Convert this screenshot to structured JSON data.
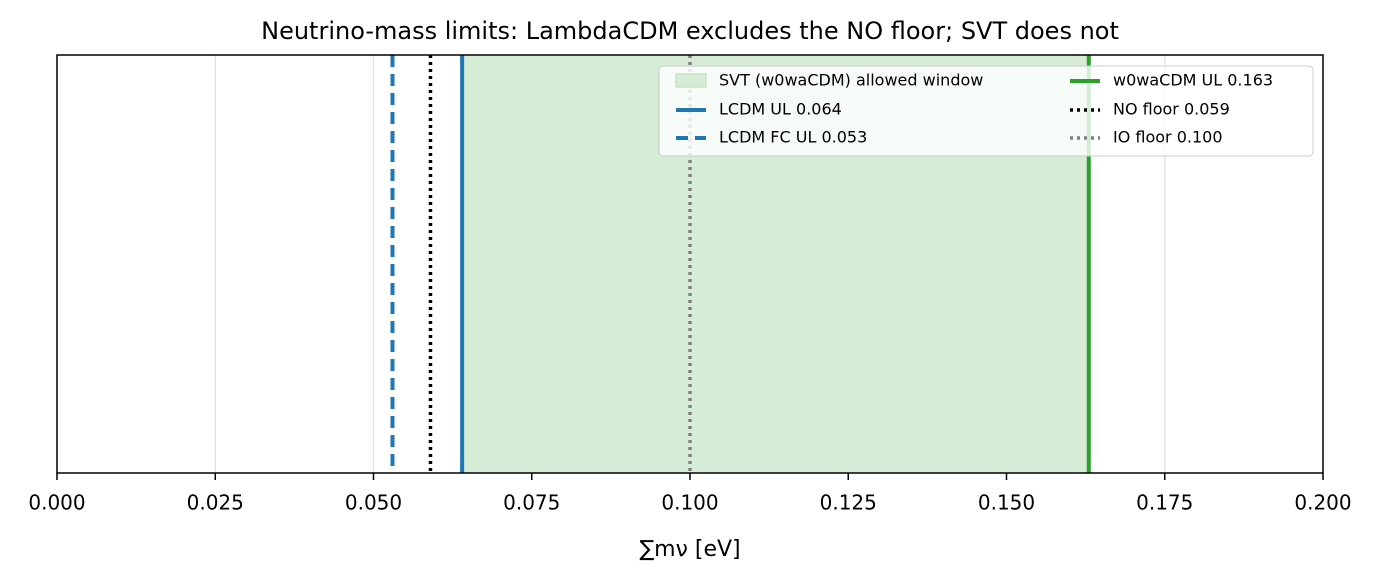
{
  "chart_data": {
    "type": "vlines",
    "title": "Neutrino-mass limits: LambdaCDM excludes the NO floor; SVT does not",
    "xlabel": "∑mν [eV]",
    "xlim": [
      0,
      0.2
    ],
    "xticks": [
      {
        "value": 0,
        "label": "0.000"
      },
      {
        "value": 0.025,
        "label": "0.025"
      },
      {
        "value": 0.05,
        "label": "0.050"
      },
      {
        "value": 0.075,
        "label": "0.075"
      },
      {
        "value": 0.1,
        "label": "0.100"
      },
      {
        "value": 0.125,
        "label": "0.125"
      },
      {
        "value": 0.15,
        "label": "0.150"
      },
      {
        "value": 0.175,
        "label": "0.175"
      },
      {
        "value": 0.2,
        "label": "0.200"
      }
    ],
    "grid": true,
    "legend": "upper right",
    "span": {
      "name": "SVT (w0waCDM) allowed window",
      "x": [
        0.064,
        0.163
      ],
      "color": "#d6ecd6"
    },
    "series": [
      {
        "name": "LCDM UL 0.064",
        "color": "#1f77b4",
        "style": "solid",
        "value": 0.064
      },
      {
        "name": "LCDM FC UL 0.053",
        "color": "#1f77b4",
        "style": "dashed",
        "value": 0.053
      },
      {
        "name": "w0waCDM UL 0.163",
        "color": "#2ca02c",
        "style": "solid",
        "value": 0.163
      },
      {
        "name": "NO floor 0.059",
        "color": "#000000",
        "style": "dotted",
        "value": 0.059
      },
      {
        "name": "IO floor 0.100",
        "color": "#808080",
        "style": "dotted",
        "value": 0.1
      }
    ]
  }
}
